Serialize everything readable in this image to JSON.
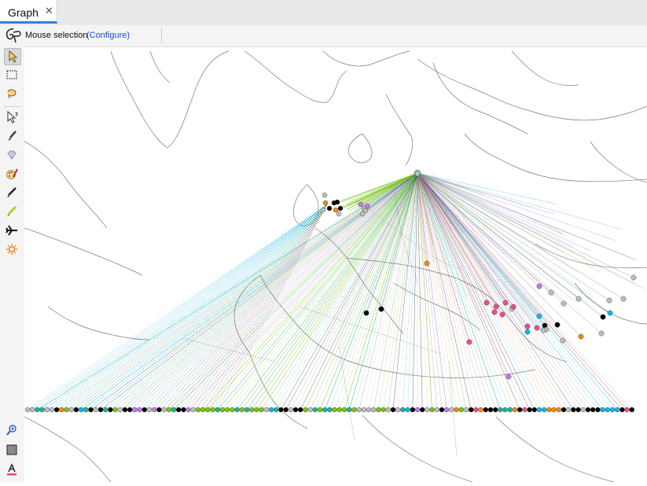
{
  "tab": {
    "title": "Graph",
    "close": "✕"
  },
  "toolbar": {
    "mode_label": "Mouse selection",
    "configure_label": "(Configure)"
  },
  "sidebar_tools": [
    "select-pointer-icon",
    "rectangle-select-icon",
    "lasso-select-icon",
    "edit-pointer-icon",
    "brush-icon",
    "diamond-icon",
    "painter-palette-icon",
    "pencil-icon",
    "highlighter-icon",
    "airplane-icon",
    "sun-icon",
    "zoom-icon",
    "gray-square-icon",
    "text-color-icon"
  ],
  "colors": {
    "accent": "#3b7ddd",
    "node_black": "#000000",
    "node_gray": "#bdbdbd",
    "node_green": "#7cc21c",
    "node_teal": "#20b39a",
    "node_cyan": "#19b3e6",
    "node_pink": "#ec4f86",
    "node_orange": "#f08a12",
    "node_violet": "#c27be6"
  }
}
